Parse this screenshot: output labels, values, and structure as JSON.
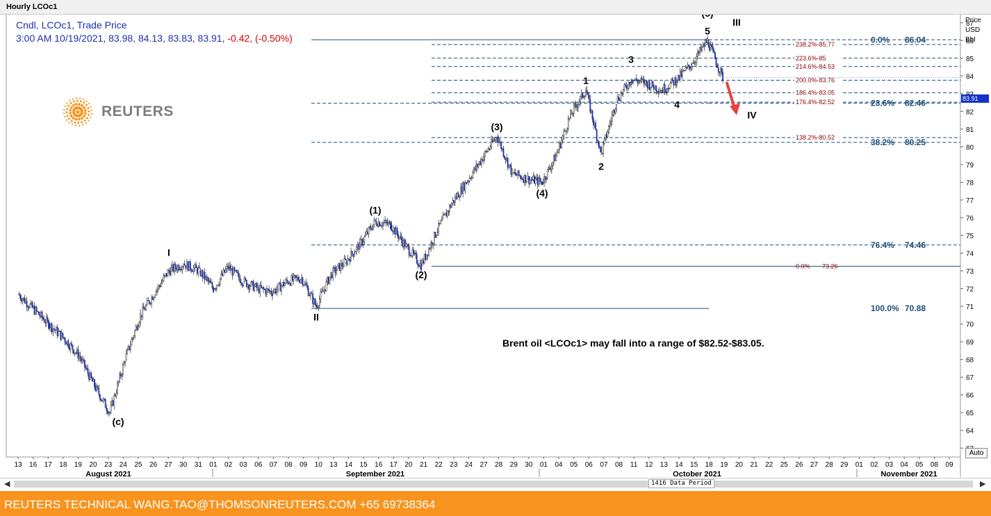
{
  "window_title": "Hourly LCOc1",
  "header": {
    "line1": "Cndl, LCOc1, Trade Price",
    "line2_main": "3:00 AM 10/19/2021, 83.98, 84.13, 83.83, 83.91,",
    "line2_change": " -0.42, (-0.50%)"
  },
  "logo": {
    "word": "REUTERS"
  },
  "annotation": "Brent oil <LCOc1> may fall into a range of $82.52-$83.05.",
  "footer": "REUTERS TECHNICAL  WANG.TAO@THOMSONREUTERS.COM  +65 69738364",
  "data_period": "1416 Data Period",
  "auto_label": "Auto",
  "last_price_tag": "83.91",
  "colors": {
    "candle": "#1c2fb0",
    "fib_red": "#8b0000",
    "fib_blue": "#1f4e79",
    "arrow": "#e84040",
    "footer": "#f7931e"
  },
  "chart_data": {
    "type": "candlestick",
    "instrument": "LCOc1",
    "interval": "Hourly",
    "y_axis": {
      "label": [
        "Price",
        "USD",
        "Bbl"
      ],
      "range": [
        62.5,
        87.5
      ],
      "ticks": [
        63,
        64,
        65,
        66,
        67,
        68,
        69,
        70,
        71,
        72,
        73,
        74,
        75,
        76,
        77,
        78,
        79,
        80,
        81,
        82,
        83,
        84,
        85,
        86,
        87
      ]
    },
    "x_axis": {
      "day_ticks": [
        "13",
        "16",
        "17",
        "18",
        "19",
        "20",
        "23",
        "24",
        "25",
        "26",
        "27",
        "30",
        "31",
        "01",
        "02",
        "03",
        "06",
        "07",
        "08",
        "09",
        "10",
        "13",
        "14",
        "15",
        "16",
        "17",
        "20",
        "21",
        "22",
        "23",
        "24",
        "27",
        "28",
        "29",
        "30",
        "01",
        "04",
        "05",
        "06",
        "07",
        "08",
        "11",
        "12",
        "13",
        "14",
        "15",
        "18",
        "19",
        "20",
        "21",
        "22",
        "25",
        "26",
        "27",
        "28",
        "29",
        "01",
        "02",
        "03",
        "04",
        "05",
        "08",
        "09"
      ],
      "months": [
        "August 2021",
        "September 2021",
        "October 2021",
        "November 2021"
      ]
    },
    "price_path": [
      [
        "08-13",
        71.7
      ],
      [
        "08-17",
        70.0
      ],
      [
        "08-18",
        69.2
      ],
      [
        "08-19",
        68.2
      ],
      [
        "08-20",
        66.5
      ],
      [
        "08-23",
        65.0
      ],
      [
        "08-24",
        68.0
      ],
      [
        "08-25",
        70.5
      ],
      [
        "08-26",
        71.8
      ],
      [
        "08-27",
        73.0
      ],
      [
        "08-30",
        73.4
      ],
      [
        "08-31",
        73.0
      ],
      [
        "09-01",
        72.0
      ],
      [
        "09-02",
        73.2
      ],
      [
        "09-03",
        72.4
      ],
      [
        "09-06",
        72.0
      ],
      [
        "09-07",
        71.8
      ],
      [
        "09-08",
        72.4
      ],
      [
        "09-09",
        72.6
      ],
      [
        "09-10",
        71.0
      ],
      [
        "09-13",
        72.8
      ],
      [
        "09-14",
        73.5
      ],
      [
        "09-15",
        74.5
      ],
      [
        "09-16",
        75.8
      ],
      [
        "09-17",
        75.6
      ],
      [
        "09-20",
        74.4
      ],
      [
        "09-21",
        73.3
      ],
      [
        "09-22",
        75.2
      ],
      [
        "09-23",
        76.8
      ],
      [
        "09-24",
        78.0
      ],
      [
        "09-27",
        79.3
      ],
      [
        "09-28",
        80.6
      ],
      [
        "09-29",
        78.5
      ],
      [
        "09-30",
        78.2
      ],
      [
        "10-01",
        78.0
      ],
      [
        "10-04",
        79.5
      ],
      [
        "10-05",
        81.8
      ],
      [
        "10-06",
        83.2
      ],
      [
        "10-07",
        79.6
      ],
      [
        "10-08",
        82.6
      ],
      [
        "10-11",
        83.8
      ],
      [
        "10-12",
        83.6
      ],
      [
        "10-13",
        83.2
      ],
      [
        "10-14",
        83.8
      ],
      [
        "10-15",
        84.7
      ],
      [
        "10-18",
        86.0
      ],
      [
        "10-19",
        83.9
      ]
    ],
    "last": {
      "time": "3:00 AM 10/19/2021",
      "open": 83.98,
      "high": 84.13,
      "low": 83.83,
      "close": 83.91,
      "change": -0.42,
      "change_pct": "-0.50%"
    },
    "wave_labels": [
      {
        "text": "(c)",
        "date": "08-23",
        "price": 65.0,
        "pos": "below"
      },
      {
        "text": "I",
        "date": "08-27",
        "price": 73.6,
        "pos": "above"
      },
      {
        "text": "II",
        "date": "09-10",
        "price": 70.9,
        "pos": "below"
      },
      {
        "text": "(1)",
        "date": "09-16",
        "price": 76.0,
        "pos": "above"
      },
      {
        "text": "(2)",
        "date": "09-21",
        "price": 73.3,
        "pos": "below"
      },
      {
        "text": "(3)",
        "date": "09-28",
        "price": 80.7,
        "pos": "above"
      },
      {
        "text": "(4)",
        "date": "10-01",
        "price": 77.9,
        "pos": "below"
      },
      {
        "text": "1",
        "date": "10-06",
        "price": 83.3,
        "pos": "above"
      },
      {
        "text": "2",
        "date": "10-07",
        "price": 79.4,
        "pos": "below"
      },
      {
        "text": "3",
        "date": "10-11",
        "price": 84.5,
        "pos": "above"
      },
      {
        "text": "4",
        "date": "10-14",
        "price": 82.9,
        "pos": "below"
      },
      {
        "text": "5",
        "date": "10-18",
        "price": 86.1,
        "pos": "above"
      },
      {
        "text": "(5)",
        "date": "10-18",
        "price": 87.1,
        "pos": "above"
      },
      {
        "text": "III",
        "date": "10-20",
        "price": 86.6,
        "pos": "above"
      },
      {
        "text": "IV",
        "date": "10-21",
        "price": 82.3,
        "pos": "below"
      }
    ],
    "retracements": [
      {
        "pct": "0.0%",
        "value": "86.04"
      },
      {
        "pct": "23.6%",
        "value": "82.46"
      },
      {
        "pct": "38.2%",
        "value": "80.25"
      },
      {
        "pct": "76.4%",
        "value": "74.46"
      },
      {
        "pct": "100.0%",
        "value": "70.88"
      }
    ],
    "extensions": [
      {
        "label": "238.2%-85.77",
        "price": 85.77
      },
      {
        "label": "223.6%-85",
        "price": 85.0
      },
      {
        "label": "214.6%-84.53",
        "price": 84.53
      },
      {
        "label": "200.0%-83.76",
        "price": 83.76
      },
      {
        "label": "186.4%-83.05",
        "price": 83.05
      },
      {
        "label": "176.4%-82.52",
        "price": 82.52
      },
      {
        "label": "138.2%-80.52",
        "price": 80.52
      },
      {
        "label": "0.0%",
        "value_label": "73.26",
        "price": 73.26
      }
    ]
  }
}
